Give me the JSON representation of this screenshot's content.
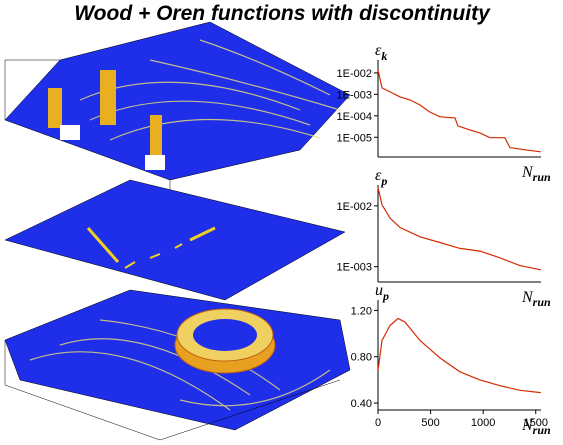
{
  "title": "Wood + Oren functions with discontinuity",
  "chart_data": [
    {
      "type": "line",
      "y_label": "ε",
      "y_label_sub": "k",
      "x_label": "N",
      "x_label_sub": "run",
      "log_y": true,
      "xlim": [
        0,
        1550
      ],
      "ylim": [
        1.2e-06,
        0.04
      ],
      "yticks": [
        {
          "value": 0.01,
          "label": "1E-002"
        },
        {
          "value": 0.001,
          "label": "1E-003"
        },
        {
          "value": 0.0001,
          "label": "1E-004"
        },
        {
          "value": 1e-05,
          "label": "1E-005"
        }
      ],
      "series": [
        {
          "color": "#d42a00",
          "x": [
            0,
            38,
            114,
            209,
            304,
            399,
            494,
            589,
            732,
            760,
            874,
            969,
            1064,
            1206,
            1254,
            1397,
            1548
          ],
          "values": [
            0.0138,
            0.002,
            0.0013,
            0.00076,
            0.00055,
            0.00032,
            0.00015,
            9e-05,
            8e-05,
            3.4e-05,
            2.2e-05,
            1.6e-05,
            9.5e-06,
            9.5e-06,
            3.3e-06,
            2.6e-06,
            2.1e-06
          ]
        }
      ]
    },
    {
      "type": "line",
      "y_label": "ε",
      "y_label_sub": "p",
      "x_label": "N",
      "x_label_sub": "run",
      "log_y": true,
      "xlim": [
        0,
        1550
      ],
      "ylim": [
        0.00056,
        0.022
      ],
      "yticks": [
        {
          "value": 0.01,
          "label": "1E-002"
        },
        {
          "value": 0.001,
          "label": "1E-003"
        }
      ],
      "series": [
        {
          "color": "#d42a00",
          "x": [
            0,
            38,
            114,
            209,
            399,
            589,
            779,
            969,
            1159,
            1349,
            1548
          ],
          "values": [
            0.02,
            0.0104,
            0.0063,
            0.0044,
            0.0031,
            0.0025,
            0.002,
            0.0018,
            0.0014,
            0.00104,
            0.00089
          ]
        }
      ]
    },
    {
      "type": "line",
      "y_label": "u",
      "y_label_sub": "p",
      "x_label": "N",
      "x_label_sub": "run",
      "log_y": false,
      "xlim": [
        0,
        1550
      ],
      "ylim": [
        0.34,
        1.29
      ],
      "xticks": [
        0,
        500,
        1000,
        1500
      ],
      "yticks": [
        {
          "value": 0.4,
          "label": "0.40"
        },
        {
          "value": 0.8,
          "label": "0.80"
        },
        {
          "value": 1.2,
          "label": "1.20"
        }
      ],
      "series": [
        {
          "color": "#d42a00",
          "x": [
            0,
            38,
            114,
            190,
            256,
            399,
            589,
            779,
            969,
            1159,
            1349,
            1548
          ],
          "values": [
            0.68,
            0.94,
            1.07,
            1.13,
            1.1,
            0.94,
            0.79,
            0.67,
            0.6,
            0.55,
            0.51,
            0.49
          ]
        }
      ]
    }
  ]
}
